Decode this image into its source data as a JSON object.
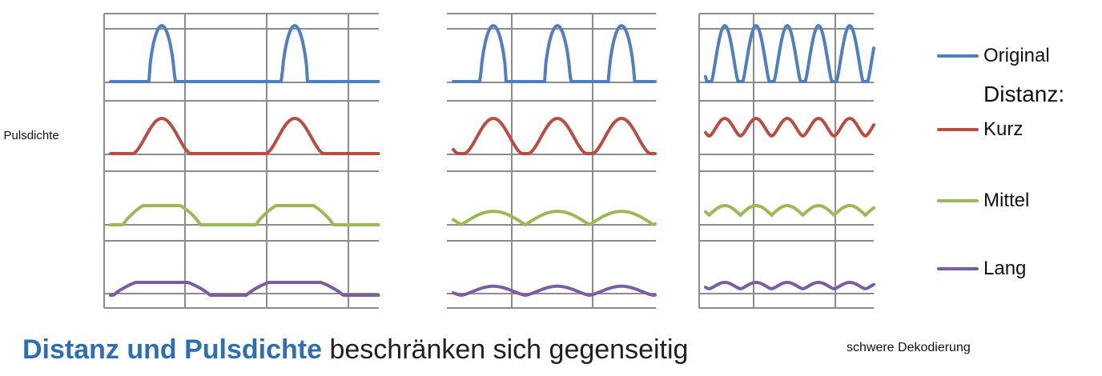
{
  "side_label": "e Pulsdichte",
  "legend": {
    "heading": "Distanz:",
    "items": [
      {
        "label": "Original",
        "color": "#4f7fc0"
      },
      {
        "label": "Kurz",
        "color": "#b94d44"
      },
      {
        "label": "Mittel",
        "color": "#9aba58"
      },
      {
        "label": "Lang",
        "color": "#7b5ea1"
      }
    ]
  },
  "footer": {
    "headline_accent": "Distanz und Pulsdichte",
    "headline_rest": " beschränken sich gegenseitig",
    "note": "schwere Dekodierung"
  },
  "panels": [
    {
      "name": "low-density",
      "pulse_period": 166,
      "phase": 72
    },
    {
      "name": "medium-density",
      "pulse_period": 80,
      "phase": 58
    },
    {
      "name": "high-density",
      "pulse_period": 39,
      "phase": 32
    }
  ]
}
